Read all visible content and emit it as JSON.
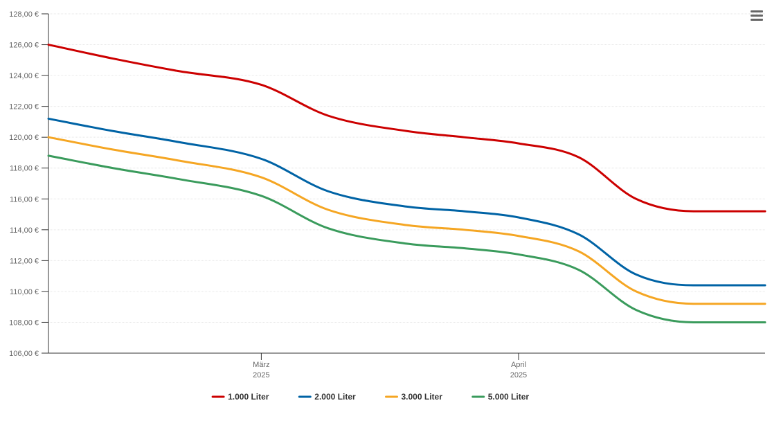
{
  "menu": {
    "icon": "hamburger-menu-icon"
  },
  "chart_data": {
    "type": "line",
    "y_tick_labels": [
      "106,00 €",
      "108,00 €",
      "110,00 €",
      "112,00 €",
      "114,00 €",
      "116,00 €",
      "118,00 €",
      "120,00 €",
      "122,00 €",
      "124,00 €",
      "126,00 €",
      "128,00 €"
    ],
    "ylim": [
      106,
      128
    ],
    "x_tick_labels": [
      {
        "month": "März",
        "year": "2025"
      },
      {
        "month": "April",
        "year": "2025"
      }
    ],
    "x_tick_positions": [
      0.297,
      0.656
    ],
    "xlim": [
      0,
      1
    ],
    "grid": true,
    "legend_position": "bottom",
    "x": [
      0.0,
      0.09,
      0.18,
      0.297,
      0.39,
      0.5,
      0.58,
      0.656,
      0.74,
      0.82,
      0.9,
      1.0
    ],
    "series": [
      {
        "name": "1.000 Liter",
        "color": "#cc0000",
        "values": [
          126.0,
          125.1,
          124.3,
          123.4,
          121.4,
          120.4,
          120.0,
          119.6,
          118.7,
          116.0,
          115.2,
          115.2
        ]
      },
      {
        "name": "2.000 Liter",
        "color": "#0063a5",
        "values": [
          121.2,
          120.4,
          119.7,
          118.6,
          116.5,
          115.5,
          115.2,
          114.8,
          113.7,
          111.1,
          110.4,
          110.4
        ]
      },
      {
        "name": "3.000 Liter",
        "color": "#f5a623",
        "values": [
          120.0,
          119.2,
          118.5,
          117.4,
          115.3,
          114.3,
          114.0,
          113.6,
          112.6,
          110.0,
          109.2,
          109.2
        ]
      },
      {
        "name": "5.000 Liter",
        "color": "#3a9b5c",
        "values": [
          118.8,
          118.0,
          117.3,
          116.2,
          114.1,
          113.1,
          112.8,
          112.4,
          111.4,
          108.8,
          108.0,
          108.0
        ]
      }
    ]
  }
}
